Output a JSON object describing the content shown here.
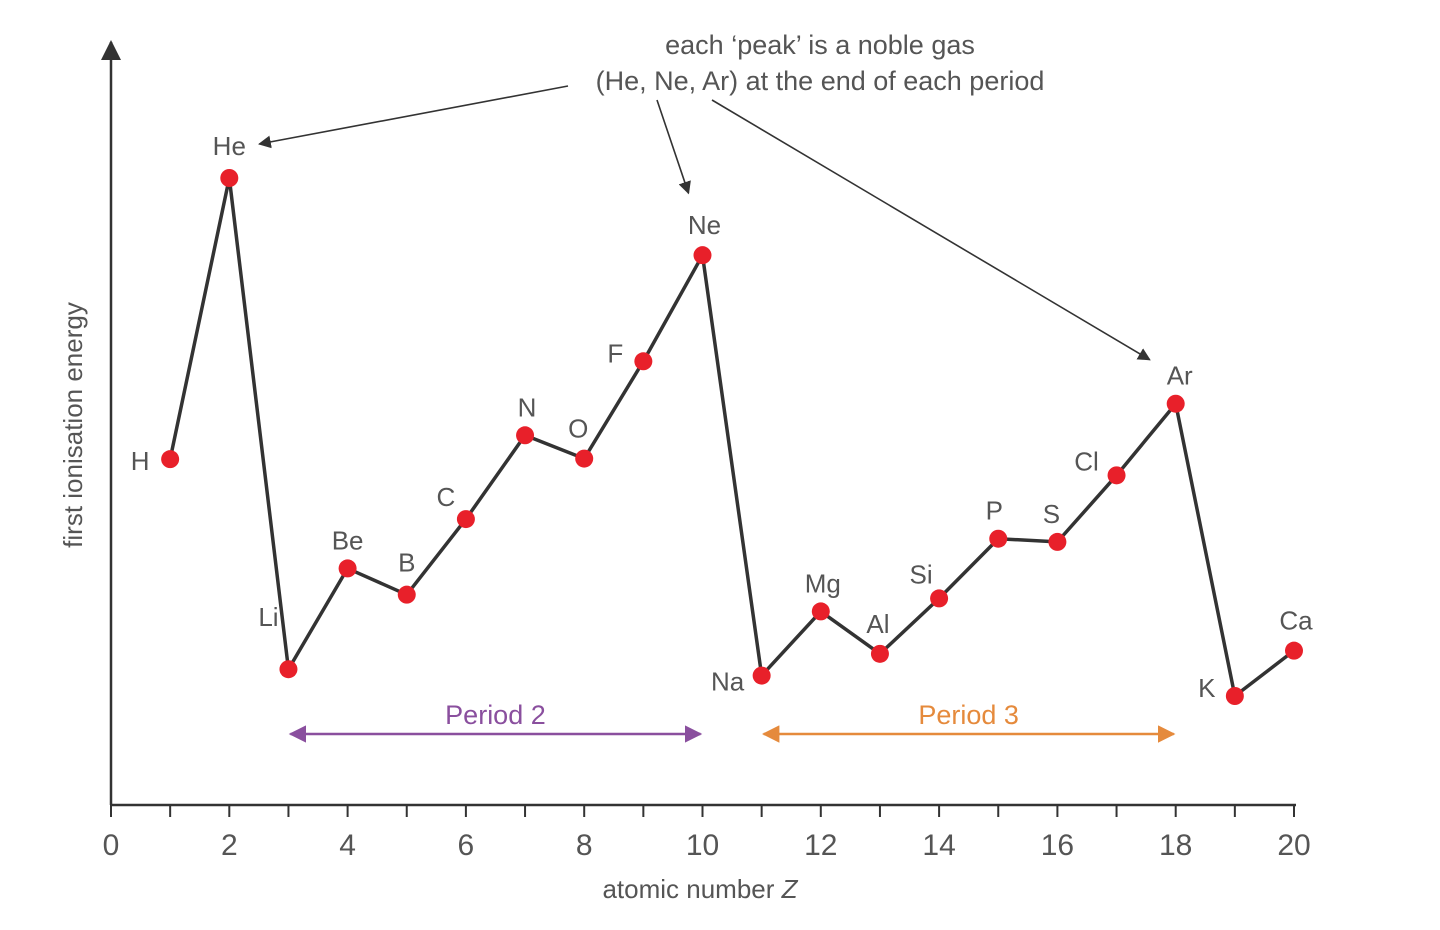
{
  "chart_data": {
    "type": "line",
    "title": "",
    "xlabel": "atomic number",
    "xlabel_var": "Z",
    "ylabel": "first ionisation energy",
    "xlim": [
      0,
      20
    ],
    "x_ticks": [
      0,
      2,
      4,
      6,
      8,
      10,
      12,
      14,
      16,
      18,
      20
    ],
    "y_ticks_shown": false,
    "grid": false,
    "series": [
      {
        "color": "#e8202a",
        "line_color": "#333333",
        "points": [
          {
            "z": 1,
            "label": "H",
            "value": 1312
          },
          {
            "z": 2,
            "label": "He",
            "value": 2372
          },
          {
            "z": 3,
            "label": "Li",
            "value": 520
          },
          {
            "z": 4,
            "label": "Be",
            "value": 900
          },
          {
            "z": 5,
            "label": "B",
            "value": 801
          },
          {
            "z": 6,
            "label": "C",
            "value": 1086
          },
          {
            "z": 7,
            "label": "N",
            "value": 1402
          },
          {
            "z": 8,
            "label": "O",
            "value": 1314
          },
          {
            "z": 9,
            "label": "F",
            "value": 1681
          },
          {
            "z": 10,
            "label": "Ne",
            "value": 2081
          },
          {
            "z": 11,
            "label": "Na",
            "value": 496
          },
          {
            "z": 12,
            "label": "Mg",
            "value": 738
          },
          {
            "z": 13,
            "label": "Al",
            "value": 578
          },
          {
            "z": 14,
            "label": "Si",
            "value": 787
          },
          {
            "z": 15,
            "label": "P",
            "value": 1012
          },
          {
            "z": 16,
            "label": "S",
            "value": 1000
          },
          {
            "z": 17,
            "label": "Cl",
            "value": 1251
          },
          {
            "z": 18,
            "label": "Ar",
            "value": 1521
          },
          {
            "z": 19,
            "label": "K",
            "value": 419
          },
          {
            "z": 20,
            "label": "Ca",
            "value": 590
          }
        ]
      }
    ],
    "annotation": {
      "line1": "each ‘peak’ is a noble gas",
      "line2": "(He, Ne, Ar) at the end of each period",
      "targets": [
        "He",
        "Ne",
        "Ar"
      ]
    },
    "periods": [
      {
        "label": "Period 2",
        "from": 3,
        "to": 10,
        "color": "#8a4f9e"
      },
      {
        "label": "Period 3",
        "from": 11,
        "to": 18,
        "color": "#e58a3c"
      }
    ]
  }
}
